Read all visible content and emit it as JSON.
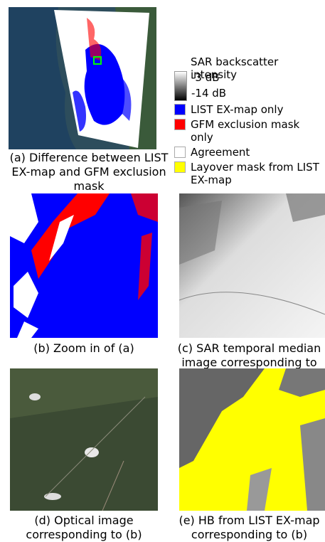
{
  "legend": {
    "title": "SAR backscatter intensity",
    "colorbar": {
      "max": "-3 dB",
      "min": "-14 dB"
    },
    "items": [
      {
        "label": "LIST EX-map only",
        "color": "#0000ff"
      },
      {
        "label": "GFM exclusion mask only",
        "color": "#ff0000"
      },
      {
        "label": "Agreement",
        "color": "#ffffff"
      },
      {
        "label": "Layover mask from LIST EX-map",
        "color": "#ffff00"
      }
    ]
  },
  "panels": [
    {
      "caption": "(a) Difference between LIST EX-map and GFM exclusion mask"
    },
    {
      "caption": "(b) Zoom in of (a)"
    },
    {
      "caption": "(c) SAR temporal median image corresponding to (b)"
    },
    {
      "caption": "(d) Optical image corresponding to (b)"
    },
    {
      "caption": "(e) HB from LIST EX-map corresponding to (b)"
    }
  ]
}
